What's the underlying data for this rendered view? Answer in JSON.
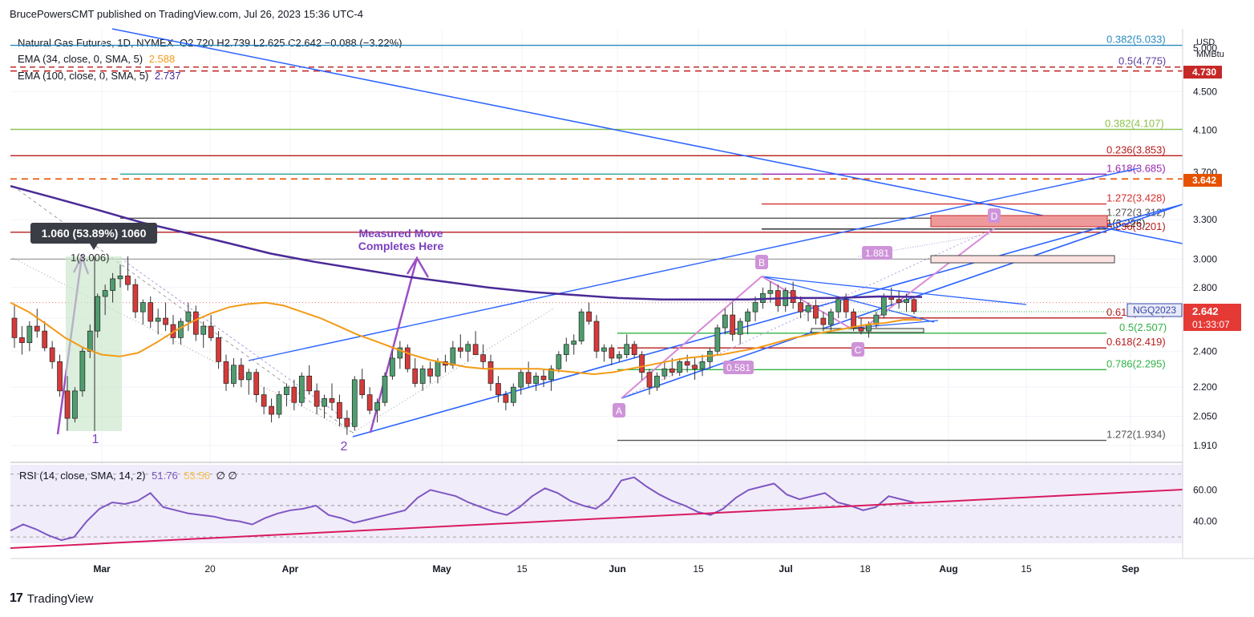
{
  "header": {
    "publisher": "BrucePowersCMT published on TradingView.com, Jul 26, 2023 15:36 UTC-4"
  },
  "legend": {
    "symbol": "Natural Gas Futures, 1D, NYMEX",
    "ohlc": "O2.720  H2.739  L2.625  C2.642  −0.088 (−3.22%)",
    "ema34_label": "EMA (34, close, 0, SMA, 5)",
    "ema34_value": "2.588",
    "ema100_label": "EMA (100, close, 0, SMA, 5)",
    "ema100_value": "2.737"
  },
  "rsi_legend": {
    "label": "RSI (14, close, SMA, 14, 2)",
    "rsi": "51.76",
    "sma": "53.56",
    "extra": "∅  ∅"
  },
  "axis": {
    "unit_1": "USD",
    "unit_2": "MMBtu"
  },
  "footer": {
    "brand": "TradingView",
    "logo": "17"
  },
  "annotations": {
    "measure_box": "1.060 (53.89%) 1060",
    "measured_move": "Measured Move\nCompletes Here",
    "wave_1": "1",
    "wave_2": "2",
    "top_label": "1(3.006)",
    "abcd": [
      "A",
      "B",
      "C",
      "D"
    ],
    "ratio_1881": "1.881",
    "ratio_0581": "0.581",
    "last_symbol": "NGQ2023",
    "last_price": "2.642",
    "countdown": "01:33:07",
    "ref_price_1": "4.730",
    "ref_price_2": "3.642"
  },
  "chart_data": [
    {
      "type": "candlestick",
      "title": "Natural Gas Futures, 1D, NYMEX",
      "y_ticks": [
        "5.000",
        "4.500",
        "4.100",
        "3.700",
        "3.300",
        "3.000",
        "2.800",
        "2.600",
        "2.400",
        "2.200",
        "2.050",
        "1.910"
      ],
      "x_ticks": [
        "Mar",
        "20",
        "Apr",
        "May",
        "15",
        "Jun",
        "15",
        "Jul",
        "18",
        "Aug",
        "15",
        "Sep"
      ],
      "ylim": [
        1.91,
        5.0
      ],
      "scale": "log",
      "fib_levels": [
        {
          "label": "0.382(5.033)",
          "value": 5.033
        },
        {
          "label": "0.5(4.775)",
          "value": 4.775
        },
        {
          "label": "0.382(4.107)",
          "value": 4.107
        },
        {
          "label": "0.236(3.853)",
          "value": 3.853
        },
        {
          "label": "1.618(3.685)",
          "value": 3.685
        },
        {
          "label": "1.272(3.428)",
          "value": 3.428
        },
        {
          "label": "1.272(3.312)",
          "value": 3.312
        },
        {
          "label": "1(3.226)",
          "value": 3.226
        },
        {
          "label": "0.236(3.201)",
          "value": 3.201
        },
        {
          "label": "0.618(2.601)",
          "value": 2.601
        },
        {
          "label": "0.5(2.507)",
          "value": 2.507
        },
        {
          "label": "0.618(2.419)",
          "value": 2.419
        },
        {
          "label": "0.786(2.295)",
          "value": 2.295
        },
        {
          "label": "1.272(1.934)",
          "value": 1.934
        }
      ],
      "ohlc": [
        [
          2.6,
          2.68,
          2.42,
          2.48
        ],
        [
          2.48,
          2.55,
          2.38,
          2.45
        ],
        [
          2.45,
          2.58,
          2.4,
          2.55
        ],
        [
          2.55,
          2.66,
          2.48,
          2.52
        ],
        [
          2.52,
          2.58,
          2.4,
          2.42
        ],
        [
          2.42,
          2.46,
          2.3,
          2.34
        ],
        [
          2.34,
          2.38,
          2.15,
          2.18
        ],
        [
          2.18,
          2.26,
          1.98,
          2.04
        ],
        [
          2.04,
          2.2,
          2.02,
          2.18
        ],
        [
          2.18,
          2.42,
          2.15,
          2.4
        ],
        [
          2.4,
          2.56,
          2.36,
          2.52
        ],
        [
          2.52,
          2.76,
          2.48,
          2.74
        ],
        [
          2.74,
          2.82,
          2.62,
          2.78
        ],
        [
          2.78,
          2.9,
          2.7,
          2.86
        ],
        [
          2.86,
          2.96,
          2.8,
          2.88
        ],
        [
          2.88,
          3.02,
          2.78,
          2.82
        ],
        [
          2.82,
          2.86,
          2.6,
          2.64
        ],
        [
          2.64,
          2.72,
          2.56,
          2.7
        ],
        [
          2.7,
          2.74,
          2.54,
          2.58
        ],
        [
          2.58,
          2.66,
          2.5,
          2.6
        ],
        [
          2.6,
          2.7,
          2.52,
          2.56
        ],
        [
          2.56,
          2.62,
          2.44,
          2.48
        ],
        [
          2.48,
          2.6,
          2.44,
          2.58
        ],
        [
          2.58,
          2.7,
          2.52,
          2.64
        ],
        [
          2.64,
          2.68,
          2.46,
          2.5
        ],
        [
          2.5,
          2.58,
          2.42,
          2.55
        ],
        [
          2.55,
          2.62,
          2.46,
          2.48
        ],
        [
          2.48,
          2.52,
          2.3,
          2.34
        ],
        [
          2.34,
          2.38,
          2.18,
          2.22
        ],
        [
          2.22,
          2.36,
          2.2,
          2.32
        ],
        [
          2.32,
          2.36,
          2.2,
          2.24
        ],
        [
          2.24,
          2.3,
          2.16,
          2.28
        ],
        [
          2.28,
          2.3,
          2.12,
          2.16
        ],
        [
          2.16,
          2.2,
          2.06,
          2.1
        ],
        [
          2.1,
          2.14,
          2.02,
          2.06
        ],
        [
          2.06,
          2.18,
          2.04,
          2.16
        ],
        [
          2.16,
          2.22,
          2.1,
          2.2
        ],
        [
          2.2,
          2.24,
          2.08,
          2.12
        ],
        [
          2.12,
          2.28,
          2.1,
          2.26
        ],
        [
          2.26,
          2.32,
          2.16,
          2.18
        ],
        [
          2.18,
          2.22,
          2.06,
          2.1
        ],
        [
          2.1,
          2.16,
          2.04,
          2.14
        ],
        [
          2.14,
          2.22,
          2.08,
          2.12
        ],
        [
          2.12,
          2.16,
          2.0,
          2.04
        ],
        [
          2.04,
          2.08,
          1.96,
          2.0
        ],
        [
          2.0,
          2.26,
          1.98,
          2.24
        ],
        [
          2.24,
          2.3,
          2.14,
          2.16
        ],
        [
          2.16,
          2.2,
          2.06,
          2.08
        ],
        [
          2.08,
          2.14,
          2.02,
          2.12
        ],
        [
          2.12,
          2.28,
          2.1,
          2.26
        ],
        [
          2.26,
          2.4,
          2.24,
          2.36
        ],
        [
          2.36,
          2.46,
          2.3,
          2.42
        ],
        [
          2.42,
          2.44,
          2.28,
          2.3
        ],
        [
          2.3,
          2.36,
          2.2,
          2.22
        ],
        [
          2.22,
          2.32,
          2.18,
          2.3
        ],
        [
          2.3,
          2.34,
          2.22,
          2.26
        ],
        [
          2.26,
          2.36,
          2.22,
          2.34
        ],
        [
          2.34,
          2.38,
          2.28,
          2.32
        ],
        [
          2.32,
          2.46,
          2.3,
          2.42
        ],
        [
          2.42,
          2.5,
          2.36,
          2.4
        ],
        [
          2.4,
          2.46,
          2.34,
          2.44
        ],
        [
          2.44,
          2.52,
          2.38,
          2.38
        ],
        [
          2.38,
          2.44,
          2.3,
          2.34
        ],
        [
          2.34,
          2.38,
          2.18,
          2.22
        ],
        [
          2.22,
          2.26,
          2.12,
          2.16
        ],
        [
          2.16,
          2.18,
          2.08,
          2.12
        ],
        [
          2.12,
          2.22,
          2.1,
          2.2
        ],
        [
          2.2,
          2.3,
          2.16,
          2.28
        ],
        [
          2.28,
          2.34,
          2.2,
          2.22
        ],
        [
          2.22,
          2.28,
          2.18,
          2.26
        ],
        [
          2.26,
          2.3,
          2.2,
          2.24
        ],
        [
          2.24,
          2.32,
          2.18,
          2.3
        ],
        [
          2.3,
          2.4,
          2.28,
          2.38
        ],
        [
          2.38,
          2.48,
          2.34,
          2.44
        ],
        [
          2.44,
          2.5,
          2.38,
          2.46
        ],
        [
          2.46,
          2.66,
          2.44,
          2.64
        ],
        [
          2.64,
          2.7,
          2.56,
          2.58
        ],
        [
          2.58,
          2.62,
          2.36,
          2.4
        ],
        [
          2.4,
          2.44,
          2.34,
          2.42
        ],
        [
          2.42,
          2.44,
          2.32,
          2.36
        ],
        [
          2.36,
          2.4,
          2.34,
          2.38
        ],
        [
          2.38,
          2.5,
          2.36,
          2.44
        ],
        [
          2.44,
          2.46,
          2.36,
          2.38
        ],
        [
          2.38,
          2.4,
          2.24,
          2.28
        ],
        [
          2.28,
          2.3,
          2.16,
          2.2
        ],
        [
          2.2,
          2.28,
          2.18,
          2.26
        ],
        [
          2.26,
          2.34,
          2.24,
          2.3
        ],
        [
          2.3,
          2.36,
          2.26,
          2.28
        ],
        [
          2.28,
          2.36,
          2.26,
          2.34
        ],
        [
          2.34,
          2.38,
          2.28,
          2.32
        ],
        [
          2.32,
          2.36,
          2.24,
          2.3
        ],
        [
          2.3,
          2.38,
          2.26,
          2.34
        ],
        [
          2.34,
          2.42,
          2.3,
          2.4
        ],
        [
          2.4,
          2.56,
          2.38,
          2.54
        ],
        [
          2.54,
          2.66,
          2.5,
          2.62
        ],
        [
          2.62,
          2.7,
          2.46,
          2.5
        ],
        [
          2.5,
          2.6,
          2.44,
          2.58
        ],
        [
          2.58,
          2.66,
          2.5,
          2.64
        ],
        [
          2.64,
          2.74,
          2.58,
          2.7
        ],
        [
          2.7,
          2.8,
          2.66,
          2.76
        ],
        [
          2.76,
          2.84,
          2.7,
          2.78
        ],
        [
          2.78,
          2.82,
          2.64,
          2.68
        ],
        [
          2.68,
          2.8,
          2.64,
          2.78
        ],
        [
          2.78,
          2.84,
          2.66,
          2.7
        ],
        [
          2.7,
          2.74,
          2.6,
          2.64
        ],
        [
          2.64,
          2.7,
          2.58,
          2.68
        ],
        [
          2.68,
          2.72,
          2.56,
          2.6
        ],
        [
          2.6,
          2.64,
          2.52,
          2.56
        ],
        [
          2.56,
          2.66,
          2.52,
          2.64
        ],
        [
          2.64,
          2.74,
          2.6,
          2.72
        ],
        [
          2.72,
          2.76,
          2.6,
          2.64
        ],
        [
          2.64,
          2.66,
          2.52,
          2.54
        ],
        [
          2.54,
          2.6,
          2.5,
          2.52
        ],
        [
          2.52,
          2.58,
          2.48,
          2.56
        ],
        [
          2.56,
          2.64,
          2.54,
          2.62
        ],
        [
          2.62,
          2.76,
          2.6,
          2.74
        ],
        [
          2.74,
          2.8,
          2.68,
          2.72
        ],
        [
          2.72,
          2.78,
          2.66,
          2.7
        ],
        [
          2.7,
          2.76,
          2.64,
          2.72
        ],
        [
          2.72,
          2.739,
          2.625,
          2.642
        ]
      ],
      "ema34": [
        2.7,
        2.64,
        2.56,
        2.48,
        2.42,
        2.38,
        2.37,
        2.39,
        2.45,
        2.52,
        2.58,
        2.63,
        2.67,
        2.69,
        2.7,
        2.68,
        2.64,
        2.6,
        2.55,
        2.5,
        2.46,
        2.42,
        2.38,
        2.35,
        2.33,
        2.31,
        2.3,
        2.3,
        2.3,
        2.3,
        2.29,
        2.28,
        2.27,
        2.28,
        2.3,
        2.32,
        2.34,
        2.36,
        2.37,
        2.38,
        2.4,
        2.42,
        2.45,
        2.48,
        2.5,
        2.52,
        2.54,
        2.56,
        2.57,
        2.59,
        2.588
      ],
      "ema100": [
        3.58,
        3.48,
        3.38,
        3.28,
        3.2,
        3.12,
        3.04,
        2.98,
        2.93,
        2.88,
        2.84,
        2.8,
        2.77,
        2.75,
        2.73,
        2.72,
        2.72,
        2.72,
        2.73,
        2.73,
        2.74,
        2.737
      ],
      "rsi": [
        34,
        38,
        35,
        31,
        28,
        30,
        40,
        48,
        52,
        51,
        53,
        58,
        49,
        47,
        45,
        44,
        43,
        41,
        40,
        38,
        42,
        45,
        47,
        48,
        50,
        44,
        42,
        39,
        41,
        43,
        45,
        47,
        55,
        60,
        58,
        56,
        52,
        49,
        46,
        44,
        49,
        56,
        61,
        58,
        53,
        50,
        48,
        54,
        66,
        68,
        62,
        57,
        53,
        50,
        46,
        44,
        48,
        55,
        60,
        62,
        64,
        57,
        54,
        56,
        58,
        52,
        50,
        47,
        49,
        56,
        54,
        52
      ],
      "rsi_ticks": [
        "60.00",
        "40.00"
      ],
      "rsi_ylim": [
        26,
        76
      ]
    }
  ]
}
